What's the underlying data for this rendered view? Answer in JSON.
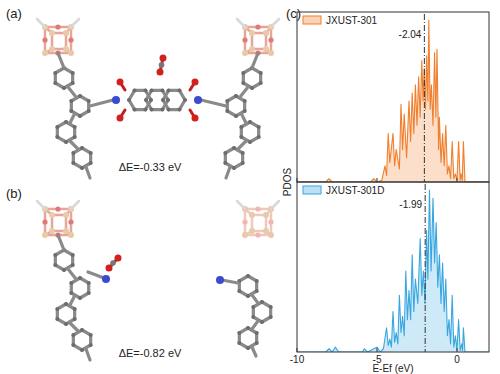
{
  "panels": [
    {
      "label": "(a)",
      "annotation": "ΔE=-0.33 eV"
    },
    {
      "label": "(b)",
      "annotation": "ΔE=-0.82 eV"
    },
    {
      "label": "(c)"
    }
  ],
  "chart_data": [
    {
      "type": "line",
      "y_label": "PDOS",
      "xlim": [
        -10,
        2
      ],
      "ylim": [
        0,
        1.05
      ],
      "xticks": [
        -10,
        -5,
        0
      ],
      "tick_labels": false,
      "legend": "upper left",
      "series": [
        {
          "name": "JXUST-301",
          "color": "#f07f2e",
          "x": [
            -10,
            -8.2,
            -8,
            -7.8,
            -5.4,
            -5.2,
            -5,
            -4.7,
            -4.5,
            -4.4,
            -4.3,
            -4.2,
            -4,
            -3.9,
            -3.8,
            -3.6,
            -3.5,
            -3.4,
            -3.3,
            -3.15,
            -3,
            -2.9,
            -2.8,
            -2.7,
            -2.6,
            -2.5,
            -2.4,
            -2.3,
            -2.2,
            -2.12,
            -2.05,
            -1.97,
            -1.9,
            -1.82,
            -1.76,
            -1.68,
            -1.6,
            -1.5,
            -1.4,
            -1.32,
            -1.25,
            -1.15,
            -1.1,
            -1,
            -0.9,
            -0.8,
            -0.7,
            -0.6,
            -0.5,
            -0.4,
            -0.3,
            -0.2,
            -0.1,
            0,
            0.1,
            0.2,
            0.25,
            0.33,
            0.4,
            0.5,
            2
          ],
          "values": [
            0,
            0,
            0.02,
            0,
            0,
            0.02,
            0,
            0.01,
            0.1,
            0.04,
            0.3,
            0.12,
            0.3,
            0.1,
            0.2,
            0.08,
            0.48,
            0.2,
            0.42,
            0.15,
            0.5,
            0.25,
            0.55,
            0.3,
            0.6,
            0.35,
            0.65,
            0.4,
            0.75,
            0.5,
            0.7,
            0.45,
            0.78,
            0.5,
            1,
            0.45,
            0.6,
            0.35,
            0.8,
            0.4,
            0.82,
            0.2,
            0.4,
            0.12,
            0.3,
            0.1,
            0.35,
            0.05,
            0.1,
            0.02,
            0.25,
            0.02,
            0.05,
            0.01,
            0.25,
            0.01,
            0.05,
            0.01,
            0.25,
            0,
            0
          ]
        }
      ],
      "annotations": [
        {
          "x": -2.04,
          "label": "-2.04"
        }
      ]
    },
    {
      "type": "line",
      "x_label": "E-Ef (eV)",
      "xlim": [
        -10,
        2
      ],
      "ylim": [
        0,
        1.05
      ],
      "xticks": [
        -10,
        -5,
        0
      ],
      "tick_labels": "x",
      "legend": "upper left",
      "series": [
        {
          "name": "JXUST-301D",
          "color": "#3aa6e0",
          "x": [
            -10,
            -8.2,
            -8,
            -7.8,
            -7.6,
            -7.4,
            -5.9,
            -5.8,
            -5.6,
            -5,
            -4.8,
            -4.6,
            -4.4,
            -4.3,
            -4.2,
            -4.1,
            -4,
            -3.9,
            -3.8,
            -3.7,
            -3.6,
            -3.5,
            -3.4,
            -3.3,
            -3.2,
            -3.1,
            -3,
            -2.9,
            -2.8,
            -2.7,
            -2.6,
            -2.45,
            -2.3,
            -2.2,
            -2.1,
            -2,
            -1.9,
            -1.82,
            -1.72,
            -1.62,
            -1.5,
            -1.4,
            -1.3,
            -1.2,
            -1.1,
            -1,
            -0.9,
            -0.8,
            -0.7,
            -0.6,
            -0.5,
            -0.4,
            -0.3,
            -0.2,
            -0.1,
            0,
            0.1,
            0.2,
            0.3,
            0.35,
            0.4,
            0.5,
            2
          ],
          "values": [
            0,
            0,
            0.02,
            0,
            0.03,
            0,
            0,
            0.02,
            0,
            0.03,
            0,
            0.02,
            0.15,
            0.04,
            0.08,
            0.03,
            0.25,
            0.06,
            0.12,
            0.05,
            0.35,
            0.12,
            0.22,
            0.1,
            0.5,
            0.2,
            0.38,
            0.2,
            0.6,
            0.25,
            0.45,
            0.3,
            0.7,
            0.35,
            0.5,
            0.3,
            0.75,
            0.45,
            1,
            0.5,
            0.95,
            0.55,
            0.8,
            0.4,
            0.6,
            0.3,
            0.55,
            0.25,
            0.45,
            0.1,
            0.2,
            0.05,
            0.35,
            0.03,
            0.1,
            0.01,
            0.2,
            0.01,
            0.05,
            0.01,
            0.15,
            0,
            0
          ]
        }
      ],
      "annotations": [
        {
          "x": -1.99,
          "label": "-1.99"
        }
      ]
    }
  ]
}
